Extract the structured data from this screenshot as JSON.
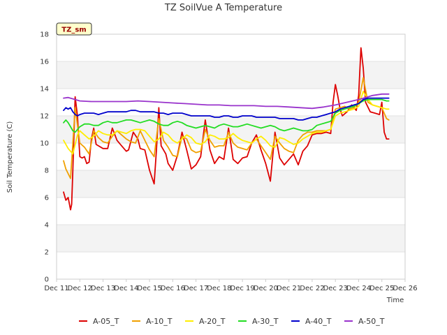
{
  "chart_data": {
    "type": "line",
    "title": "TZ SoilVue A Temperature",
    "xlabel": "Time",
    "ylabel": "Soil Temperature (C)",
    "tag": "TZ_sm",
    "ylim": [
      0,
      18
    ],
    "xlim": [
      11,
      26
    ],
    "yticks": [
      0,
      2,
      4,
      6,
      8,
      10,
      12,
      14,
      16,
      18
    ],
    "xticks": [
      {
        "v": 11,
        "label": "Dec 11"
      },
      {
        "v": 12,
        "label": "Dec 12"
      },
      {
        "v": 13,
        "label": "Dec 13"
      },
      {
        "v": 14,
        "label": "Dec 14"
      },
      {
        "v": 15,
        "label": "Dec 15"
      },
      {
        "v": 16,
        "label": "Dec 16"
      },
      {
        "v": 17,
        "label": "Dec 17"
      },
      {
        "v": 18,
        "label": "Dec 18"
      },
      {
        "v": 19,
        "label": "Dec 19"
      },
      {
        "v": 20,
        "label": "Dec 20"
      },
      {
        "v": 21,
        "label": "Dec 21"
      },
      {
        "v": 22,
        "label": "Dec 22"
      },
      {
        "v": 23,
        "label": "Dec 23"
      },
      {
        "v": 24,
        "label": "Dec 24"
      },
      {
        "v": 25,
        "label": "Dec 25"
      },
      {
        "v": 26,
        "label": "Dec 26"
      }
    ],
    "grid": true,
    "legend_position": "bottom",
    "series": [
      {
        "name": "A-05_T",
        "color": "#dd0000",
        "x": [
          11.3,
          11.4,
          11.5,
          11.6,
          11.65,
          11.7,
          11.8,
          11.9,
          12.0,
          12.1,
          12.2,
          12.3,
          12.4,
          12.5,
          12.6,
          12.7,
          12.8,
          13.0,
          13.2,
          13.4,
          13.6,
          13.8,
          14.0,
          14.1,
          14.3,
          14.5,
          14.6,
          14.8,
          15.0,
          15.2,
          15.3,
          15.4,
          15.5,
          15.7,
          15.8,
          16.0,
          16.2,
          16.4,
          16.6,
          16.8,
          17.0,
          17.2,
          17.4,
          17.6,
          17.8,
          18.0,
          18.2,
          18.4,
          18.6,
          18.8,
          19.0,
          19.2,
          19.4,
          19.6,
          19.8,
          20.0,
          20.2,
          20.4,
          20.6,
          20.8,
          21.0,
          21.2,
          21.4,
          21.6,
          21.8,
          22.0,
          22.2,
          22.4,
          22.6,
          22.8,
          22.9,
          23.0,
          23.1,
          23.2,
          23.3,
          23.5,
          23.7,
          23.9,
          24.0,
          24.1,
          24.2,
          24.3,
          24.5,
          24.7,
          24.9,
          25.0,
          25.1,
          25.2,
          25.3
        ],
        "y": [
          6.4,
          5.8,
          6.0,
          5.1,
          5.5,
          8.0,
          13.4,
          12.0,
          9.0,
          8.9,
          9.0,
          8.5,
          8.6,
          10.3,
          11.1,
          9.9,
          9.8,
          9.6,
          9.6,
          11.1,
          10.2,
          9.8,
          9.4,
          9.5,
          10.8,
          10.3,
          9.6,
          9.5,
          8.0,
          7.0,
          9.5,
          12.6,
          9.8,
          9.2,
          8.5,
          8.0,
          9.1,
          10.8,
          9.5,
          8.1,
          8.4,
          9.0,
          11.7,
          9.5,
          8.5,
          9.0,
          8.8,
          11.1,
          8.8,
          8.5,
          8.9,
          9.0,
          10.0,
          10.6,
          9.5,
          8.5,
          7.2,
          10.8,
          8.9,
          8.4,
          8.8,
          9.2,
          8.4,
          9.4,
          9.8,
          10.6,
          10.7,
          10.7,
          10.8,
          10.7,
          13.0,
          14.3,
          13.5,
          12.5,
          12.0,
          12.3,
          12.8,
          12.4,
          13.5,
          17.0,
          15.5,
          13.0,
          12.3,
          12.2,
          12.1,
          13.0,
          10.8,
          10.3,
          10.3
        ]
      },
      {
        "name": "A-10_T",
        "color": "#f0a000",
        "x": [
          11.3,
          11.4,
          11.6,
          11.7,
          11.8,
          12.0,
          12.2,
          12.4,
          12.6,
          12.8,
          13.0,
          13.2,
          13.4,
          13.6,
          13.8,
          14.0,
          14.2,
          14.4,
          14.6,
          14.8,
          15.0,
          15.2,
          15.4,
          15.6,
          15.8,
          16.0,
          16.2,
          16.4,
          16.6,
          16.8,
          17.0,
          17.2,
          17.4,
          17.6,
          17.8,
          18.0,
          18.2,
          18.4,
          18.6,
          18.8,
          19.0,
          19.2,
          19.4,
          19.6,
          19.8,
          20.0,
          20.2,
          20.4,
          20.6,
          20.8,
          21.0,
          21.2,
          21.4,
          21.6,
          21.8,
          22.0,
          22.2,
          22.4,
          22.6,
          22.8,
          23.0,
          23.2,
          23.4,
          23.6,
          23.8,
          24.0,
          24.2,
          24.4,
          24.6,
          24.8,
          25.0,
          25.2,
          25.3
        ],
        "y": [
          8.7,
          8.1,
          7.4,
          10.0,
          12.6,
          10.0,
          9.7,
          9.2,
          10.9,
          10.4,
          10.1,
          10.0,
          10.5,
          10.9,
          10.6,
          10.3,
          10.1,
          10.0,
          10.9,
          10.2,
          9.5,
          9.0,
          11.8,
          10.2,
          9.7,
          9.1,
          9.0,
          10.5,
          10.3,
          9.5,
          9.3,
          9.4,
          11.0,
          10.2,
          9.7,
          9.8,
          9.8,
          10.8,
          10.0,
          9.7,
          9.6,
          9.5,
          10.0,
          10.3,
          9.8,
          9.3,
          8.8,
          10.5,
          10.0,
          9.6,
          9.4,
          9.3,
          10.2,
          10.6,
          10.8,
          10.8,
          10.9,
          10.9,
          10.9,
          11.0,
          12.5,
          12.6,
          12.7,
          12.5,
          12.6,
          13.0,
          14.8,
          13.0,
          12.8,
          12.7,
          12.6,
          11.8,
          11.7
        ]
      },
      {
        "name": "A-20_T",
        "color": "#ffee00",
        "x": [
          11.3,
          11.5,
          11.7,
          11.9,
          12.0,
          12.2,
          12.4,
          12.6,
          12.8,
          13.0,
          13.2,
          13.4,
          13.6,
          13.8,
          14.0,
          14.2,
          14.4,
          14.6,
          14.8,
          15.0,
          15.2,
          15.4,
          15.6,
          15.8,
          16.0,
          16.2,
          16.4,
          16.6,
          16.8,
          17.0,
          17.2,
          17.4,
          17.6,
          17.8,
          18.0,
          18.2,
          18.4,
          18.6,
          18.8,
          19.0,
          19.2,
          19.4,
          19.6,
          19.8,
          20.0,
          20.2,
          20.4,
          20.6,
          20.8,
          21.0,
          21.2,
          21.4,
          21.6,
          21.8,
          22.0,
          22.2,
          22.4,
          22.6,
          22.8,
          23.0,
          23.2,
          23.4,
          23.6,
          23.8,
          24.0,
          24.2,
          24.4,
          24.6,
          24.8,
          25.0,
          25.2,
          25.3
        ],
        "y": [
          10.2,
          9.6,
          9.2,
          10.6,
          10.9,
          10.6,
          10.3,
          10.5,
          10.9,
          10.7,
          10.6,
          10.6,
          10.9,
          10.8,
          10.7,
          10.9,
          11.0,
          11.0,
          10.9,
          10.5,
          10.1,
          10.3,
          10.8,
          10.6,
          10.2,
          10.0,
          10.3,
          10.6,
          10.4,
          10.0,
          9.9,
          10.1,
          10.6,
          10.5,
          10.3,
          10.3,
          10.4,
          10.7,
          10.4,
          10.2,
          10.1,
          10.0,
          10.3,
          10.5,
          10.2,
          9.8,
          9.7,
          10.4,
          10.3,
          10.1,
          9.9,
          10.0,
          10.3,
          10.5,
          10.7,
          10.8,
          10.8,
          10.9,
          11.0,
          12.0,
          12.2,
          12.3,
          12.4,
          12.5,
          12.7,
          13.8,
          13.2,
          12.8,
          12.7,
          12.6,
          12.5,
          12.5
        ]
      },
      {
        "name": "A-30_T",
        "color": "#22dd22",
        "x": [
          11.3,
          11.4,
          11.5,
          11.6,
          11.7,
          11.8,
          12.0,
          12.2,
          12.4,
          12.6,
          12.8,
          13.0,
          13.2,
          13.4,
          13.6,
          13.8,
          14.0,
          14.2,
          14.4,
          14.6,
          14.8,
          15.0,
          15.2,
          15.4,
          15.6,
          15.8,
          16.0,
          16.2,
          16.4,
          16.6,
          16.8,
          17.0,
          17.2,
          17.4,
          17.6,
          17.8,
          18.0,
          18.2,
          18.4,
          18.6,
          18.8,
          19.0,
          19.2,
          19.4,
          19.6,
          19.8,
          20.0,
          20.2,
          20.4,
          20.6,
          20.8,
          21.0,
          21.2,
          21.4,
          21.6,
          21.8,
          22.0,
          22.2,
          22.4,
          22.6,
          22.8,
          23.0,
          23.2,
          23.4,
          23.6,
          23.8,
          24.0,
          24.2,
          24.4,
          24.6,
          24.8,
          25.0,
          25.2,
          25.3
        ],
        "y": [
          11.5,
          11.7,
          11.5,
          11.2,
          10.9,
          10.8,
          11.2,
          11.4,
          11.4,
          11.3,
          11.3,
          11.5,
          11.6,
          11.5,
          11.5,
          11.6,
          11.7,
          11.7,
          11.6,
          11.5,
          11.6,
          11.7,
          11.6,
          11.4,
          11.3,
          11.3,
          11.5,
          11.6,
          11.5,
          11.3,
          11.2,
          11.1,
          11.2,
          11.3,
          11.2,
          11.1,
          11.3,
          11.4,
          11.3,
          11.2,
          11.2,
          11.3,
          11.4,
          11.3,
          11.2,
          11.1,
          11.2,
          11.3,
          11.2,
          11.0,
          10.9,
          11.0,
          11.1,
          11.0,
          10.9,
          10.9,
          11.0,
          11.3,
          11.4,
          11.5,
          11.6,
          12.2,
          12.4,
          12.5,
          12.6,
          12.7,
          12.9,
          13.1,
          13.2,
          13.2,
          13.2,
          13.2,
          13.1,
          13.1
        ]
      },
      {
        "name": "A-40_T",
        "color": "#0000cc",
        "x": [
          11.3,
          11.4,
          11.5,
          11.6,
          11.7,
          11.8,
          11.9,
          12.0,
          12.2,
          12.4,
          12.6,
          12.8,
          13.0,
          13.2,
          13.4,
          13.6,
          13.8,
          14.0,
          14.2,
          14.4,
          14.6,
          14.8,
          15.0,
          15.2,
          15.4,
          15.6,
          15.8,
          16.0,
          16.2,
          16.4,
          16.6,
          16.8,
          17.0,
          17.2,
          17.4,
          17.6,
          17.8,
          18.0,
          18.2,
          18.4,
          18.6,
          18.8,
          19.0,
          19.2,
          19.4,
          19.6,
          19.8,
          20.0,
          20.2,
          20.4,
          20.6,
          20.8,
          21.0,
          21.2,
          21.4,
          21.6,
          21.8,
          22.0,
          22.2,
          22.4,
          22.6,
          22.8,
          23.0,
          23.2,
          23.4,
          23.6,
          23.8,
          24.0,
          24.2,
          24.4,
          24.6,
          24.8,
          25.0,
          25.2,
          25.3
        ],
        "y": [
          12.4,
          12.6,
          12.5,
          12.6,
          12.3,
          12.1,
          12.0,
          12.1,
          12.2,
          12.2,
          12.2,
          12.1,
          12.2,
          12.3,
          12.3,
          12.3,
          12.3,
          12.3,
          12.4,
          12.4,
          12.3,
          12.3,
          12.3,
          12.3,
          12.2,
          12.2,
          12.1,
          12.2,
          12.2,
          12.2,
          12.1,
          12.0,
          12.0,
          12.0,
          12.0,
          12.0,
          11.9,
          11.9,
          12.0,
          12.0,
          11.9,
          11.9,
          12.0,
          12.0,
          12.0,
          11.9,
          11.9,
          11.9,
          11.9,
          11.9,
          11.8,
          11.8,
          11.8,
          11.8,
          11.7,
          11.7,
          11.8,
          11.9,
          11.9,
          12.0,
          12.1,
          12.2,
          12.3,
          12.5,
          12.6,
          12.7,
          12.8,
          12.9,
          13.2,
          13.3,
          13.3,
          13.3,
          13.3,
          13.3,
          13.3
        ]
      },
      {
        "name": "A-50_T",
        "color": "#9933cc",
        "x": [
          11.3,
          11.5,
          11.7,
          12.0,
          12.5,
          13.0,
          13.5,
          14.0,
          14.5,
          15.0,
          15.5,
          16.0,
          16.5,
          17.0,
          17.5,
          18.0,
          18.5,
          19.0,
          19.5,
          20.0,
          20.5,
          21.0,
          21.5,
          22.0,
          22.5,
          23.0,
          23.5,
          24.0,
          24.3,
          24.6,
          25.0,
          25.3
        ],
        "y": [
          13.3,
          13.35,
          13.25,
          13.1,
          13.05,
          13.05,
          13.05,
          13.05,
          13.1,
          13.05,
          13.0,
          12.95,
          12.9,
          12.85,
          12.8,
          12.8,
          12.75,
          12.75,
          12.75,
          12.7,
          12.7,
          12.65,
          12.6,
          12.55,
          12.65,
          12.8,
          13.0,
          13.2,
          13.35,
          13.5,
          13.6,
          13.6
        ]
      }
    ]
  }
}
